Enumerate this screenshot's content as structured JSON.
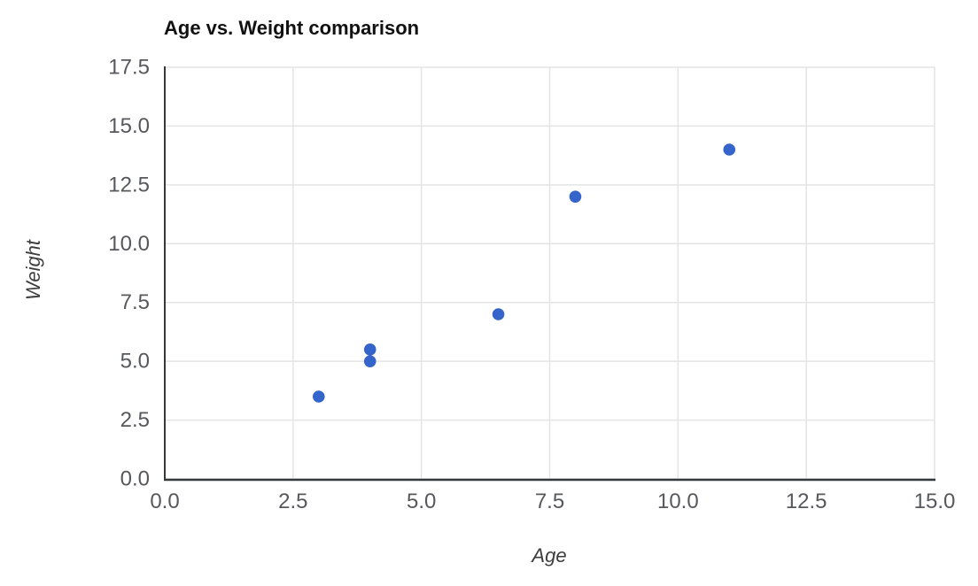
{
  "chart_data": {
    "type": "scatter",
    "title": "Age vs. Weight comparison",
    "xlabel": "Age",
    "ylabel": "Weight",
    "xlim": [
      0,
      15
    ],
    "ylim": [
      0,
      17.5
    ],
    "grid": true,
    "legend": "none",
    "x_tick_values": [
      0,
      2.5,
      5,
      7.5,
      10,
      12.5,
      15
    ],
    "x_tick_labels": [
      "0.0",
      "2.5",
      "5.0",
      "7.5",
      "10.0",
      "12.5",
      "15.0"
    ],
    "y_tick_values": [
      0,
      2.5,
      5,
      7.5,
      10,
      12.5,
      15,
      17.5
    ],
    "y_tick_labels": [
      "0.0",
      "2.5",
      "5.0",
      "7.5",
      "10.0",
      "12.5",
      "15.0",
      "17.5"
    ],
    "points": [
      {
        "x": 3,
        "y": 3.5
      },
      {
        "x": 4,
        "y": 5
      },
      {
        "x": 4,
        "y": 5.5
      },
      {
        "x": 6.5,
        "y": 7
      },
      {
        "x": 8,
        "y": 12
      },
      {
        "x": 11,
        "y": 14
      }
    ],
    "colors": {
      "point": "#3564cb",
      "grid": "#e4e4e4",
      "axis": "#37383a",
      "tick_label": "#56585c",
      "title": "#111111",
      "axis_label": "#3d3d3d",
      "background": "#ffffff"
    }
  }
}
